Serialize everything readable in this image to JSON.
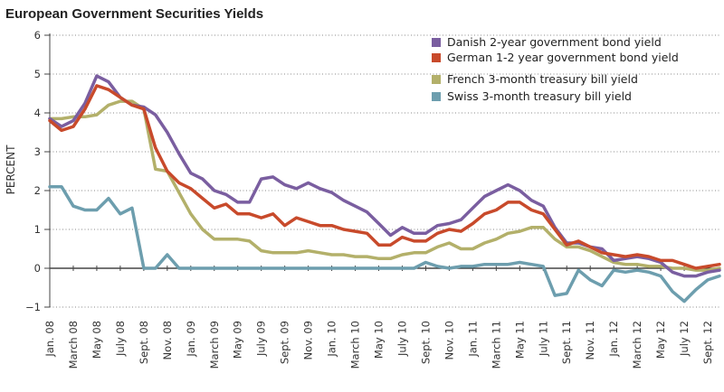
{
  "chart_data": {
    "type": "line",
    "title": "European Government Securities Yields",
    "ylabel": "PERCENT",
    "xlabel": "",
    "ylim": [
      -1,
      6
    ],
    "yticks": [
      6,
      5,
      4,
      3,
      2,
      1,
      0,
      -1
    ],
    "ytick_labels": [
      "6",
      "5",
      "4",
      "3",
      "2",
      "1",
      "0",
      "−1"
    ],
    "grid": true,
    "legend_position": "top-right",
    "x_tick_labels": [
      "Jan. 08",
      "March 08",
      "May 08",
      "July 08",
      "Sept. 08",
      "Nov. 08",
      "Jan. 09",
      "March 09",
      "May 09",
      "July 09",
      "Sept. 09",
      "Nov. 09",
      "Jan. 10",
      "March 10",
      "May 10",
      "July 10",
      "Sept. 10",
      "Nov. 10",
      "Jan. 11",
      "March 11",
      "May 11",
      "July 11",
      "Sept. 11",
      "Nov. 11",
      "Jan. 12",
      "March 12",
      "May 12",
      "July 12",
      "Sept. 12"
    ],
    "x_months": [
      "Jan 08",
      "Feb 08",
      "Mar 08",
      "Apr 08",
      "May 08",
      "Jun 08",
      "Jul 08",
      "Aug 08",
      "Sep 08",
      "Oct 08",
      "Nov 08",
      "Dec 08",
      "Jan 09",
      "Feb 09",
      "Mar 09",
      "Apr 09",
      "May 09",
      "Jun 09",
      "Jul 09",
      "Aug 09",
      "Sep 09",
      "Oct 09",
      "Nov 09",
      "Dec 09",
      "Jan 10",
      "Feb 10",
      "Mar 10",
      "Apr 10",
      "May 10",
      "Jun 10",
      "Jul 10",
      "Aug 10",
      "Sep 10",
      "Oct 10",
      "Nov 10",
      "Dec 10",
      "Jan 11",
      "Feb 11",
      "Mar 11",
      "Apr 11",
      "May 11",
      "Jun 11",
      "Jul 11",
      "Aug 11",
      "Sep 11",
      "Oct 11",
      "Nov 11",
      "Dec 11",
      "Jan 12",
      "Feb 12",
      "Mar 12",
      "Apr 12",
      "May 12",
      "Jun 12",
      "Jul 12",
      "Aug 12",
      "Sep 12",
      "Oct 12"
    ],
    "series": [
      {
        "name": "Danish 2-year government bond yield",
        "color": "#7a5ea0",
        "values": [
          3.85,
          3.65,
          3.8,
          4.25,
          4.95,
          4.8,
          4.4,
          4.2,
          4.15,
          3.95,
          3.5,
          2.95,
          2.45,
          2.3,
          2.0,
          1.9,
          1.7,
          1.7,
          2.3,
          2.35,
          2.15,
          2.05,
          2.2,
          2.05,
          1.95,
          1.75,
          1.6,
          1.45,
          1.15,
          0.85,
          1.05,
          0.9,
          0.9,
          1.1,
          1.15,
          1.25,
          1.55,
          1.85,
          2.0,
          2.15,
          2.0,
          1.75,
          1.6,
          1.05,
          0.65,
          0.65,
          0.55,
          0.5,
          0.2,
          0.25,
          0.3,
          0.25,
          0.15,
          -0.1,
          -0.2,
          -0.2,
          -0.1,
          -0.05
        ]
      },
      {
        "name": "German 1-2 year government bond yield",
        "color": "#c84a2b",
        "values": [
          3.8,
          3.55,
          3.65,
          4.1,
          4.7,
          4.6,
          4.4,
          4.2,
          4.1,
          3.1,
          2.5,
          2.2,
          2.05,
          1.8,
          1.55,
          1.65,
          1.4,
          1.4,
          1.3,
          1.4,
          1.1,
          1.3,
          1.2,
          1.1,
          1.1,
          1.0,
          0.95,
          0.9,
          0.6,
          0.6,
          0.8,
          0.7,
          0.7,
          0.9,
          1.0,
          0.95,
          1.15,
          1.4,
          1.5,
          1.7,
          1.7,
          1.5,
          1.4,
          1.0,
          0.6,
          0.7,
          0.55,
          0.4,
          0.35,
          0.3,
          0.35,
          0.3,
          0.2,
          0.2,
          0.1,
          0.0,
          0.05,
          0.1
        ]
      },
      {
        "name": "French 3-month treasury bill yield",
        "color": "#b3b06a",
        "values": [
          3.85,
          3.85,
          3.9,
          3.9,
          3.95,
          4.2,
          4.3,
          4.3,
          4.1,
          2.55,
          2.5,
          1.95,
          1.4,
          1.0,
          0.75,
          0.75,
          0.75,
          0.7,
          0.45,
          0.4,
          0.4,
          0.4,
          0.45,
          0.4,
          0.35,
          0.35,
          0.3,
          0.3,
          0.25,
          0.25,
          0.35,
          0.4,
          0.4,
          0.55,
          0.65,
          0.5,
          0.5,
          0.65,
          0.75,
          0.9,
          0.95,
          1.05,
          1.05,
          0.75,
          0.55,
          0.55,
          0.45,
          0.3,
          0.15,
          0.1,
          0.1,
          0.05,
          0.05,
          0.0,
          0.0,
          -0.05,
          -0.05,
          0.0
        ]
      },
      {
        "name": "Swiss 3-month treasury bill yield",
        "color": "#6d9eae",
        "values": [
          2.1,
          2.1,
          1.6,
          1.5,
          1.5,
          1.8,
          1.4,
          1.55,
          0.0,
          0.0,
          0.35,
          0.0,
          0.0,
          0.0,
          0.0,
          0.0,
          0.0,
          0.0,
          0.0,
          0.0,
          0.0,
          0.0,
          0.0,
          0.0,
          0.0,
          0.0,
          0.0,
          0.0,
          0.0,
          0.0,
          0.0,
          0.0,
          0.15,
          0.05,
          0.0,
          0.05,
          0.05,
          0.1,
          0.1,
          0.1,
          0.15,
          0.1,
          0.05,
          -0.7,
          -0.65,
          -0.05,
          -0.3,
          -0.45,
          -0.05,
          -0.1,
          -0.05,
          -0.1,
          -0.2,
          -0.6,
          -0.85,
          -0.55,
          -0.3,
          -0.2
        ]
      }
    ]
  }
}
